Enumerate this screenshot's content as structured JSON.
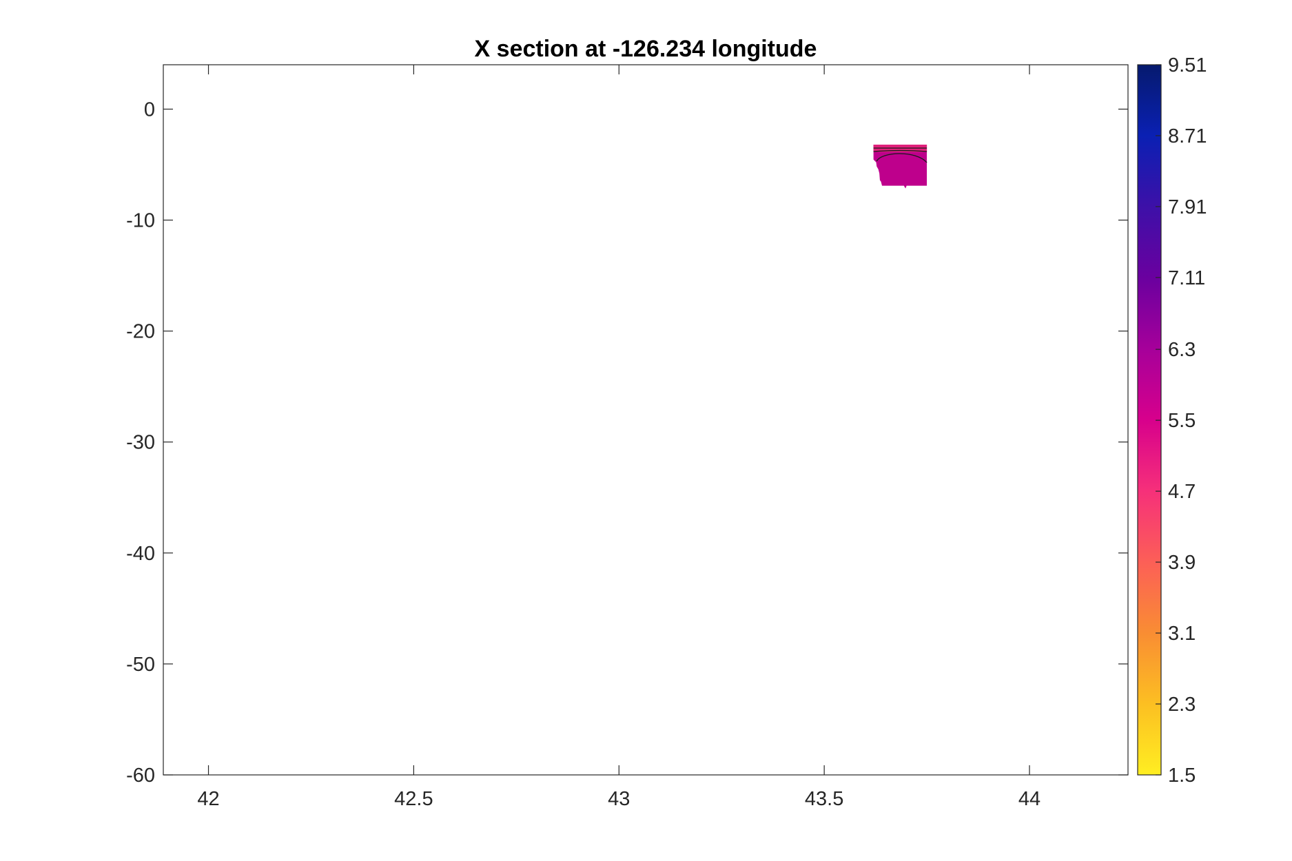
{
  "chart_data": {
    "type": "heatmap",
    "title": "X section at -126.234 longitude",
    "xlabel": "",
    "ylabel": "",
    "xlim": [
      41.89,
      44.24
    ],
    "ylim": [
      -60,
      4
    ],
    "x_ticks": [
      42,
      42.5,
      43,
      43.5,
      44
    ],
    "x_tick_labels": [
      "42",
      "42.5",
      "43",
      "43.5",
      "44"
    ],
    "y_ticks": [
      0,
      -10,
      -20,
      -30,
      -40,
      -50,
      -60
    ],
    "y_tick_labels": [
      "0",
      "-10",
      "-20",
      "-30",
      "-40",
      "-50",
      "-60"
    ],
    "grid": false,
    "colorbar": {
      "limits": [
        1.5,
        9.51
      ],
      "ticks": [
        9.51,
        8.71,
        7.91,
        7.11,
        6.3,
        5.5,
        4.7,
        3.9,
        3.1,
        2.3,
        1.5
      ],
      "tick_labels": [
        "9.51",
        "8.71",
        "7.91",
        "7.11",
        "6.3",
        "5.5",
        "4.7",
        "3.9",
        "3.1",
        "2.3",
        "1.5"
      ],
      "colors": [
        "#ffee22",
        "#fcbf22",
        "#f98d33",
        "#fc5f57",
        "#f6307a",
        "#d7008c",
        "#a6009a",
        "#6a009f",
        "#3d10a8",
        "#0a20b3",
        "#061a6e"
      ]
    },
    "section": {
      "x_range": [
        43.62,
        43.75
      ],
      "depth_range": [
        -3.2,
        -6.9
      ],
      "values": [
        {
          "depth": -3.4,
          "value": 6.0
        },
        {
          "depth": -4.2,
          "value": 6.1
        },
        {
          "depth": -5.2,
          "value": 6.4
        },
        {
          "depth": -6.4,
          "value": 6.5
        }
      ],
      "contour_levels": [
        5.8,
        6.0,
        6.2
      ],
      "fill_color": "#be008c",
      "top_band_color": "#e0207a"
    }
  }
}
